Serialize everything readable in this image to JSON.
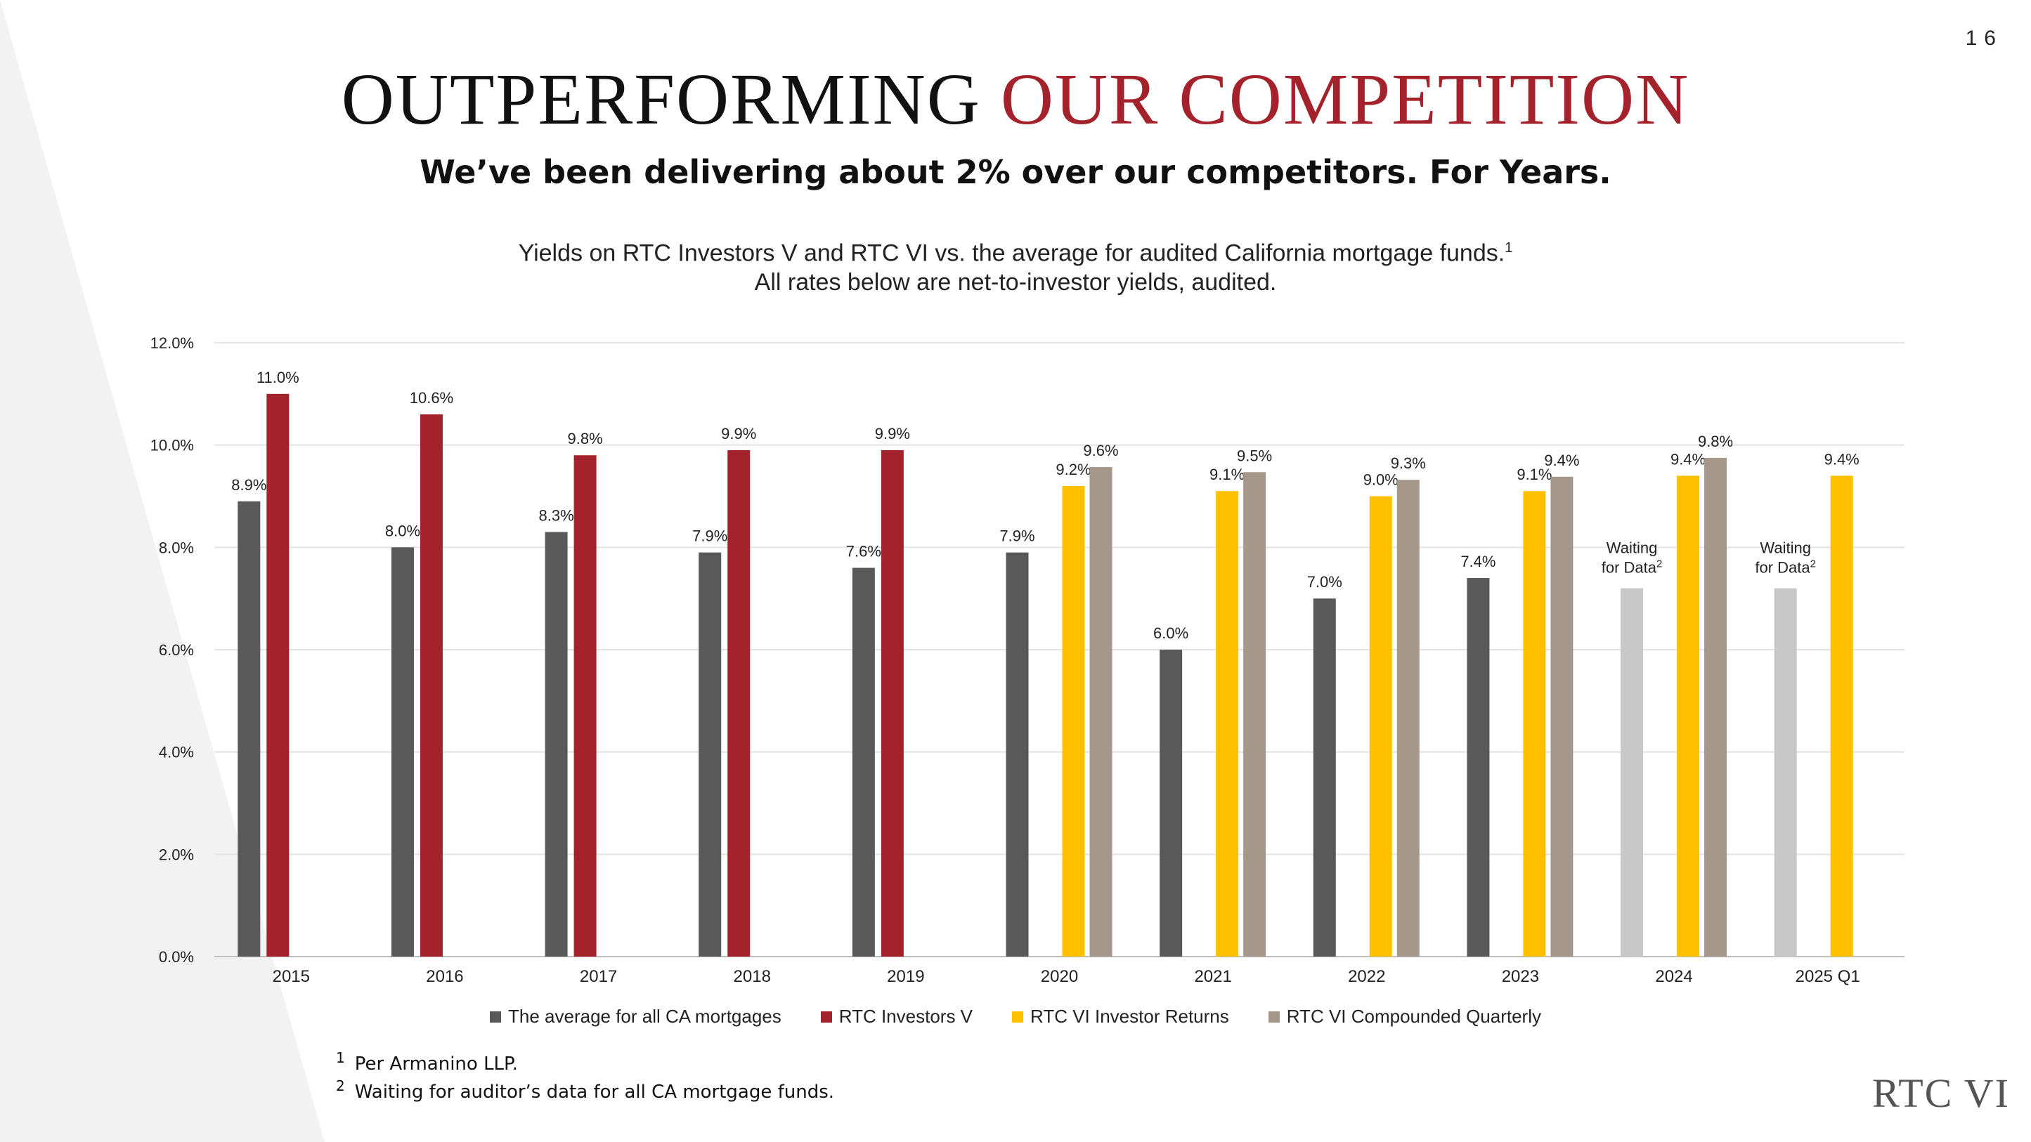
{
  "page_number": "16",
  "title": {
    "part1": "OUTPERFORMING",
    "part2": "OUR COMPETITION"
  },
  "subtitle": "We’ve been delivering about 2% over our competitors. For Years.",
  "description": {
    "line1": "Yields on RTC Investors V and RTC VI vs. the average for audited California mortgage funds.",
    "line1_sup": "1",
    "line2": "All rates below are net-to-investor yields, audited."
  },
  "colors": {
    "average": "#595959",
    "rtc5": "#a3222b",
    "rtc6": "#ffc000",
    "rtc6q": "#a5978a",
    "waiting": "#c8c8c8",
    "accent": "#a3222b"
  },
  "chart_data": {
    "type": "bar",
    "ylim": [
      0,
      12
    ],
    "y_ticks": [
      "0.0%",
      "2.0%",
      "4.0%",
      "6.0%",
      "8.0%",
      "10.0%",
      "12.0%"
    ],
    "grid": true,
    "legend_placement": "bottom",
    "categories": [
      "2015",
      "2016",
      "2017",
      "2018",
      "2019",
      "2020",
      "2021",
      "2022",
      "2023",
      "2024",
      "2025 Q1"
    ],
    "series": [
      {
        "name": "The average for all CA mortgages",
        "key": "average",
        "values": [
          8.9,
          8.0,
          8.3,
          7.9,
          7.6,
          7.9,
          6.0,
          7.0,
          7.4,
          null,
          null
        ],
        "labels": [
          "8.9%",
          "8.0%",
          "8.3%",
          "7.9%",
          "7.6%",
          "7.9%",
          "6.0%",
          "7.0%",
          "7.4%",
          "",
          ""
        ]
      },
      {
        "name": "RTC Investors V",
        "key": "rtc5",
        "values": [
          11.0,
          10.6,
          9.8,
          9.9,
          9.9,
          null,
          null,
          null,
          null,
          null,
          null
        ],
        "labels": [
          "11.0%",
          "10.6%",
          "9.8%",
          "9.9%",
          "9.9%",
          "",
          "",
          "",
          "",
          "",
          ""
        ]
      },
      {
        "name": "RTC VI Investor Returns",
        "key": "rtc6",
        "values": [
          null,
          null,
          null,
          null,
          null,
          9.2,
          9.1,
          9.0,
          9.1,
          9.4,
          9.4
        ],
        "labels": [
          "",
          "",
          "",
          "",
          "",
          "9.2%",
          "9.1%",
          "9.0%",
          "9.1%",
          "9.4%",
          "9.4%"
        ]
      },
      {
        "name": "RTC VI Compounded Quarterly",
        "key": "rtc6q",
        "values": [
          null,
          null,
          null,
          null,
          null,
          9.57,
          9.47,
          9.32,
          9.38,
          9.75,
          null
        ],
        "labels": [
          "",
          "",
          "",
          "",
          "",
          "9.6%",
          "9.5%",
          "9.3%",
          "9.4%",
          "9.8%",
          ""
        ]
      }
    ],
    "placeholders": [
      {
        "category": "2024",
        "value": 7.2,
        "label_line1": "Waiting",
        "label_line2": "for Data",
        "sup": "2"
      },
      {
        "category": "2025 Q1",
        "value": 7.2,
        "label_line1": "Waiting",
        "label_line2": "for Data",
        "sup": "2"
      }
    ]
  },
  "footnotes": [
    {
      "num": "1",
      "text": "Per Armanino LLP."
    },
    {
      "num": "2",
      "text": "Waiting for auditor’s data for all CA mortgage funds."
    }
  ],
  "logo": "RTC VI"
}
